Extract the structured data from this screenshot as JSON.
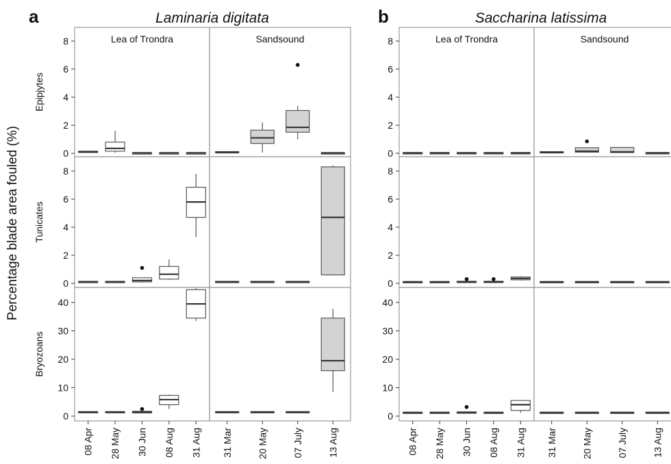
{
  "figure": {
    "ylabel": "Percentage blade area fouled (%)",
    "rows": [
      "Epipjytes",
      "Tunicates",
      "Bryozoans"
    ]
  },
  "colors": {
    "box_white": "#ffffff",
    "box_grey": "#d3d3d3",
    "frame": "#9a9a9a",
    "box_line": "#555555"
  },
  "chart_data": [
    {
      "type": "boxplot",
      "letter": "a",
      "title": "Laminaria digitata",
      "sites": [
        {
          "name": "Lea of Trondra",
          "dates": [
            "08 Apr",
            "28 May",
            "30 Jun",
            "08 Aug",
            "31 Aug"
          ],
          "fill": "white"
        },
        {
          "name": "Sandsound",
          "dates": [
            "31 Mar",
            "20 May",
            "07 July",
            "13 Aug"
          ],
          "fill": "grey"
        }
      ],
      "rows": [
        {
          "name": "Epipjytes",
          "ylim": [
            0,
            8
          ],
          "yticks": [
            0,
            2,
            4,
            6,
            8
          ],
          "boxes": [
            [
              {
                "min": 0.1,
                "q1": 0.1,
                "median": 0.12,
                "q3": 0.15,
                "max": 0.15
              },
              {
                "min": 0.05,
                "q1": 0.15,
                "median": 0.35,
                "q3": 0.8,
                "max": 1.6
              },
              {
                "min": 0.02,
                "q1": 0.02,
                "median": 0.03,
                "q3": 0.04,
                "max": 0.04
              },
              {
                "min": 0.02,
                "q1": 0.02,
                "median": 0.03,
                "q3": 0.04,
                "max": 0.04
              },
              {
                "min": 0.02,
                "q1": 0.02,
                "median": 0.03,
                "q3": 0.04,
                "max": 0.04
              }
            ],
            [
              {
                "min": 0.05,
                "q1": 0.05,
                "median": 0.08,
                "q3": 0.12,
                "max": 0.12
              },
              {
                "min": 0.05,
                "q1": 0.7,
                "median": 1.1,
                "q3": 1.65,
                "max": 2.2
              },
              {
                "min": 1.0,
                "q1": 1.5,
                "median": 1.85,
                "q3": 3.05,
                "max": 3.4,
                "outliers": [
                  6.3
                ]
              },
              {
                "min": 0.02,
                "q1": 0.02,
                "median": 0.03,
                "q3": 0.04,
                "max": 0.04
              }
            ]
          ]
        },
        {
          "name": "Tunicates",
          "ylim": [
            0,
            8
          ],
          "yticks": [
            0,
            2,
            4,
            6,
            8
          ],
          "boxes": [
            [
              {
                "min": 0.1,
                "q1": 0.1,
                "median": 0.12,
                "q3": 0.14,
                "max": 0.14
              },
              {
                "min": 0.1,
                "q1": 0.1,
                "median": 0.12,
                "q3": 0.14,
                "max": 0.14
              },
              {
                "min": 0.05,
                "q1": 0.1,
                "median": 0.2,
                "q3": 0.4,
                "max": 0.4,
                "outliers": [
                  1.1
                ]
              },
              {
                "min": 0.25,
                "q1": 0.3,
                "median": 0.65,
                "q3": 1.2,
                "max": 1.7
              },
              {
                "min": 3.3,
                "q1": 4.7,
                "median": 5.8,
                "q3": 6.85,
                "max": 7.8
              }
            ],
            [
              {
                "min": 0.1,
                "q1": 0.1,
                "median": 0.12,
                "q3": 0.14,
                "max": 0.14
              },
              {
                "min": 0.1,
                "q1": 0.1,
                "median": 0.12,
                "q3": 0.14,
                "max": 0.14
              },
              {
                "min": 0.1,
                "q1": 0.1,
                "median": 0.12,
                "q3": 0.14,
                "max": 0.14
              },
              {
                "min": 0.55,
                "q1": 0.6,
                "median": 4.7,
                "q3": 8.3,
                "max": 8.4
              }
            ]
          ]
        },
        {
          "name": "Bryozoans",
          "ylim": [
            0,
            45
          ],
          "yticks": [
            0,
            10,
            20,
            30,
            40
          ],
          "boxes": [
            [
              {
                "min": 1.2,
                "q1": 1.2,
                "median": 1.4,
                "q3": 1.6,
                "max": 1.6
              },
              {
                "min": 1.2,
                "q1": 1.2,
                "median": 1.4,
                "q3": 1.6,
                "max": 1.6
              },
              {
                "min": 1.0,
                "q1": 1.1,
                "median": 1.4,
                "q3": 1.7,
                "max": 1.7,
                "outliers": [
                  2.5
                ]
              },
              {
                "min": 2.5,
                "q1": 4.0,
                "median": 5.8,
                "q3": 7.3,
                "max": 7.6
              },
              {
                "min": 33.5,
                "q1": 34.5,
                "median": 39.5,
                "q3": 44.5,
                "max": 45
              }
            ],
            [
              {
                "min": 1.2,
                "q1": 1.2,
                "median": 1.4,
                "q3": 1.6,
                "max": 1.6
              },
              {
                "min": 1.2,
                "q1": 1.2,
                "median": 1.4,
                "q3": 1.6,
                "max": 1.6
              },
              {
                "min": 1.2,
                "q1": 1.2,
                "median": 1.4,
                "q3": 1.6,
                "max": 1.6
              },
              {
                "min": 8.5,
                "q1": 16.0,
                "median": 19.5,
                "q3": 34.5,
                "max": 37.8
              }
            ]
          ]
        }
      ]
    },
    {
      "type": "boxplot",
      "letter": "b",
      "title": "Saccharina latissima",
      "sites": [
        {
          "name": "Lea of Trondra",
          "dates": [
            "08 Apr",
            "28 May",
            "30 Jun",
            "08 Aug",
            "31 Aug"
          ],
          "fill": "white"
        },
        {
          "name": "Sandsound",
          "dates": [
            "31 Mar",
            "20 May",
            "07 July",
            "13 Aug"
          ],
          "fill": "grey"
        }
      ],
      "rows": [
        {
          "name": "Epipjytes",
          "ylim": [
            0,
            8
          ],
          "yticks": [
            0,
            2,
            4,
            6,
            8
          ],
          "boxes": [
            [
              {
                "min": 0.02,
                "q1": 0.02,
                "median": 0.03,
                "q3": 0.05,
                "max": 0.05
              },
              {
                "min": 0.02,
                "q1": 0.02,
                "median": 0.03,
                "q3": 0.05,
                "max": 0.05
              },
              {
                "min": 0.02,
                "q1": 0.02,
                "median": 0.03,
                "q3": 0.05,
                "max": 0.05
              },
              {
                "min": 0.02,
                "q1": 0.02,
                "median": 0.03,
                "q3": 0.05,
                "max": 0.05
              },
              {
                "min": 0.02,
                "q1": 0.02,
                "median": 0.03,
                "q3": 0.05,
                "max": 0.05
              }
            ],
            [
              {
                "min": 0.03,
                "q1": 0.03,
                "median": 0.06,
                "q3": 0.12,
                "max": 0.12
              },
              {
                "min": 0.05,
                "q1": 0.08,
                "median": 0.15,
                "q3": 0.4,
                "max": 0.4,
                "outliers": [
                  0.85
                ]
              },
              {
                "min": 0.05,
                "q1": 0.05,
                "median": 0.1,
                "q3": 0.42,
                "max": 0.42
              },
              {
                "min": 0.02,
                "q1": 0.02,
                "median": 0.03,
                "q3": 0.05,
                "max": 0.05
              }
            ]
          ]
        },
        {
          "name": "Tunicates",
          "ylim": [
            0,
            8
          ],
          "yticks": [
            0,
            2,
            4,
            6,
            8
          ],
          "boxes": [
            [
              {
                "min": 0.08,
                "q1": 0.08,
                "median": 0.1,
                "q3": 0.13,
                "max": 0.13
              },
              {
                "min": 0.08,
                "q1": 0.08,
                "median": 0.1,
                "q3": 0.13,
                "max": 0.13
              },
              {
                "min": 0.06,
                "q1": 0.07,
                "median": 0.1,
                "q3": 0.15,
                "max": 0.15,
                "outliers": [
                  0.3
                ]
              },
              {
                "min": 0.06,
                "q1": 0.07,
                "median": 0.1,
                "q3": 0.15,
                "max": 0.15,
                "outliers": [
                  0.3
                ]
              },
              {
                "min": 0.2,
                "q1": 0.25,
                "median": 0.35,
                "q3": 0.45,
                "max": 0.5
              }
            ],
            [
              {
                "min": 0.08,
                "q1": 0.08,
                "median": 0.1,
                "q3": 0.13,
                "max": 0.13
              },
              {
                "min": 0.08,
                "q1": 0.08,
                "median": 0.1,
                "q3": 0.13,
                "max": 0.13
              },
              {
                "min": 0.08,
                "q1": 0.08,
                "median": 0.1,
                "q3": 0.13,
                "max": 0.13
              },
              {
                "min": 0.08,
                "q1": 0.08,
                "median": 0.1,
                "q3": 0.13,
                "max": 0.13
              }
            ]
          ]
        },
        {
          "name": "Bryozoans",
          "ylim": [
            0,
            45
          ],
          "yticks": [
            0,
            10,
            20,
            30,
            40
          ],
          "boxes": [
            [
              {
                "min": 1.0,
                "q1": 1.0,
                "median": 1.2,
                "q3": 1.4,
                "max": 1.4
              },
              {
                "min": 1.0,
                "q1": 1.0,
                "median": 1.2,
                "q3": 1.4,
                "max": 1.4
              },
              {
                "min": 1.0,
                "q1": 1.0,
                "median": 1.2,
                "q3": 1.5,
                "max": 1.5,
                "outliers": [
                  3.2
                ]
              },
              {
                "min": 1.0,
                "q1": 1.0,
                "median": 1.2,
                "q3": 1.4,
                "max": 1.4
              },
              {
                "min": 1.2,
                "q1": 2.0,
                "median": 4.0,
                "q3": 5.5,
                "max": 5.5
              }
            ],
            [
              {
                "min": 1.0,
                "q1": 1.0,
                "median": 1.2,
                "q3": 1.4,
                "max": 1.4
              },
              {
                "min": 1.0,
                "q1": 1.0,
                "median": 1.2,
                "q3": 1.4,
                "max": 1.4
              },
              {
                "min": 1.0,
                "q1": 1.0,
                "median": 1.2,
                "q3": 1.4,
                "max": 1.4
              },
              {
                "min": 1.0,
                "q1": 1.0,
                "median": 1.2,
                "q3": 1.4,
                "max": 1.4
              }
            ]
          ]
        }
      ]
    }
  ]
}
